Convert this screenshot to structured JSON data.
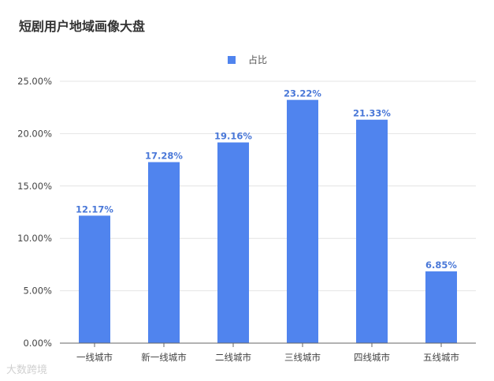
{
  "title": "短剧用户地域画像大盘",
  "watermark": "大数跨境",
  "chart_data": {
    "type": "bar",
    "title": "短剧用户地域画像大盘",
    "categories": [
      "一线城市",
      "新一线城市",
      "二线城市",
      "三线城市",
      "四线城市",
      "五线城市"
    ],
    "series": [
      {
        "name": "占比",
        "values": [
          12.17,
          17.28,
          19.16,
          23.22,
          21.33,
          6.85
        ],
        "data_labels": [
          "12.17%",
          "17.28%",
          "19.16%",
          "23.22%",
          "21.33%",
          "6.85%"
        ]
      }
    ],
    "y_ticks": [
      "0.00%",
      "5.00%",
      "10.00%",
      "15.00%",
      "20.00%",
      "25.00%"
    ],
    "ylim": [
      0,
      25
    ],
    "xlabel": "",
    "ylabel": "",
    "grid": true,
    "legend_position": "top-center",
    "colors": {
      "bar": "#5084ee",
      "data_label": "#4a78d8",
      "grid": "#e4e4e4",
      "axis": "#666666"
    }
  }
}
